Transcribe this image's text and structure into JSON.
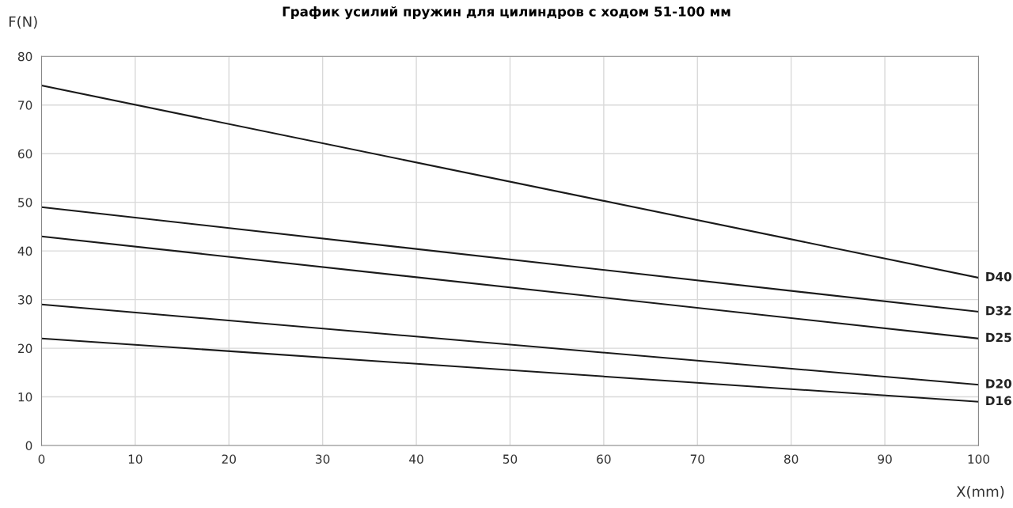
{
  "chart_data": {
    "type": "line",
    "title": "График усилий пружин для цилиндров с ходом 51-100 мм",
    "xlabel": "X(mm)",
    "ylabel": "F(N)",
    "x": [
      0,
      100
    ],
    "series": [
      {
        "name": "D40",
        "color": "#1a1a1a",
        "values": [
          74,
          34.5
        ]
      },
      {
        "name": "D32",
        "color": "#1a1a1a",
        "values": [
          49,
          27.5
        ]
      },
      {
        "name": "D25",
        "color": "#1a1a1a",
        "values": [
          43,
          22
        ]
      },
      {
        "name": "D20",
        "color": "#1a1a1a",
        "values": [
          29,
          12.5
        ]
      },
      {
        "name": "D16",
        "color": "#1a1a1a",
        "values": [
          22,
          9
        ]
      }
    ],
    "xlim": [
      0,
      100
    ],
    "ylim": [
      0,
      80
    ],
    "xticks": [
      0,
      10,
      20,
      30,
      40,
      50,
      60,
      70,
      80,
      90,
      100
    ],
    "yticks": [
      0,
      10,
      20,
      30,
      40,
      50,
      60,
      70,
      80
    ],
    "grid": true,
    "legend": false,
    "marker": "none",
    "line_style": "solid"
  }
}
